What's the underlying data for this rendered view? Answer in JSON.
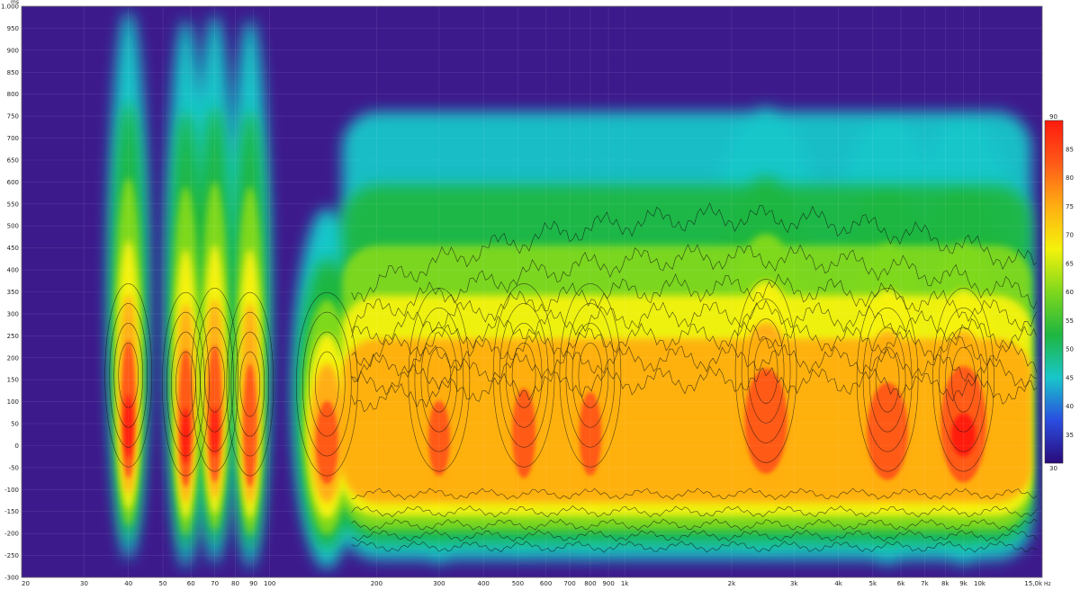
{
  "chart_data": {
    "type": "heatmap",
    "x_axis": {
      "scale": "log",
      "unit": "Hz",
      "range": [
        20,
        15000
      ],
      "ticks": [
        {
          "value": 20,
          "label": "20"
        },
        {
          "value": 30,
          "label": "30"
        },
        {
          "value": 40,
          "label": "40"
        },
        {
          "value": 50,
          "label": "50"
        },
        {
          "value": 60,
          "label": "60"
        },
        {
          "value": 70,
          "label": "70"
        },
        {
          "value": 80,
          "label": "80"
        },
        {
          "value": 90,
          "label": "90"
        },
        {
          "value": 100,
          "label": "100"
        },
        {
          "value": 200,
          "label": "200"
        },
        {
          "value": 300,
          "label": "300"
        },
        {
          "value": 400,
          "label": "400"
        },
        {
          "value": 500,
          "label": "500"
        },
        {
          "value": 600,
          "label": "600"
        },
        {
          "value": 700,
          "label": "700"
        },
        {
          "value": 800,
          "label": "800"
        },
        {
          "value": 900,
          "label": "900"
        },
        {
          "value": 1000,
          "label": "1k"
        },
        {
          "value": 2000,
          "label": "2k"
        },
        {
          "value": 3000,
          "label": "3k"
        },
        {
          "value": 4000,
          "label": "4k"
        },
        {
          "value": 5000,
          "label": "5k"
        },
        {
          "value": 6000,
          "label": "6k"
        },
        {
          "value": 7000,
          "label": "7k"
        },
        {
          "value": 8000,
          "label": "8k"
        },
        {
          "value": 9000,
          "label": "9k"
        },
        {
          "value": 10000,
          "label": "10k"
        },
        {
          "value": 15000,
          "label": "15,0k"
        }
      ]
    },
    "y_axis": {
      "unit": "ms",
      "range": [
        -300,
        1000
      ],
      "ticks": [
        {
          "value": 1000,
          "label": "1.000"
        },
        {
          "value": 950,
          "label": "950"
        },
        {
          "value": 900,
          "label": "900"
        },
        {
          "value": 850,
          "label": "850"
        },
        {
          "value": 800,
          "label": "800"
        },
        {
          "value": 750,
          "label": "750"
        },
        {
          "value": 700,
          "label": "700"
        },
        {
          "value": 650,
          "label": "650"
        },
        {
          "value": 600,
          "label": "600"
        },
        {
          "value": 550,
          "label": "550"
        },
        {
          "value": 500,
          "label": "500"
        },
        {
          "value": 450,
          "label": "450"
        },
        {
          "value": 400,
          "label": "400"
        },
        {
          "value": 350,
          "label": "350"
        },
        {
          "value": 300,
          "label": "300"
        },
        {
          "value": 250,
          "label": "250"
        },
        {
          "value": 200,
          "label": "200"
        },
        {
          "value": 150,
          "label": "150"
        },
        {
          "value": 100,
          "label": "100"
        },
        {
          "value": 50,
          "label": "50"
        },
        {
          "value": 0,
          "label": "0"
        },
        {
          "value": -50,
          "label": "-50"
        },
        {
          "value": -100,
          "label": "-100"
        },
        {
          "value": -150,
          "label": "-150"
        },
        {
          "value": -200,
          "label": "-200"
        },
        {
          "value": -250,
          "label": "-250"
        },
        {
          "value": -300,
          "label": "-300"
        }
      ]
    },
    "colorbar": {
      "range": [
        30,
        90
      ],
      "ticks": [
        90,
        85,
        80,
        75,
        70,
        65,
        60,
        55,
        50,
        45,
        40,
        35,
        30
      ],
      "colors": [
        "#2a0a7a",
        "#2a4de0",
        "#18c6c9",
        "#1fb640",
        "#7ed81c",
        "#f4f20c",
        "#ffae12",
        "#ff5a18",
        "#ff1a0e"
      ]
    },
    "background_color": "#3d1a8c",
    "grid": true,
    "contour_lines": true,
    "peaks": [
      {
        "freq": 40,
        "time_ms": 40,
        "level": 90
      },
      {
        "freq": 58,
        "time_ms": 20,
        "level": 89
      },
      {
        "freq": 70,
        "time_ms": 30,
        "level": 88
      },
      {
        "freq": 88,
        "time_ms": 20,
        "level": 86
      },
      {
        "freq": 145,
        "time_ms": 20,
        "level": 85
      },
      {
        "freq": 300,
        "time_ms": 30,
        "level": 84
      },
      {
        "freq": 520,
        "time_ms": 40,
        "level": 86
      },
      {
        "freq": 800,
        "time_ms": 40,
        "level": 85
      },
      {
        "freq": 2500,
        "time_ms": 50,
        "level": 86
      },
      {
        "freq": 5500,
        "time_ms": 30,
        "level": 85
      },
      {
        "freq": 9000,
        "time_ms": 30,
        "level": 88
      }
    ]
  }
}
